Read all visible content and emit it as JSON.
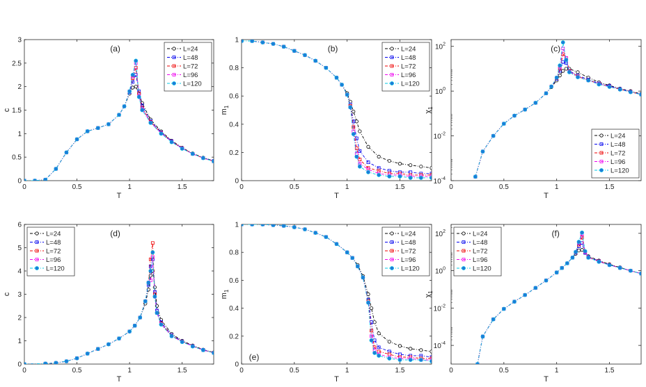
{
  "figure": {
    "series_names": [
      "L=24",
      "L=48",
      "L=72",
      "L=96",
      "L=120"
    ],
    "series_colors": [
      "#000000",
      "#0000ee",
      "#ee0000",
      "#ee00ee",
      "#00c8e6"
    ],
    "marker_fill": "#1e7bd8"
  },
  "chart_data": [
    {
      "panel_label": "(a)",
      "type": "line",
      "xlabel": "T",
      "ylabel": "c",
      "xlim": [
        0,
        1.8
      ],
      "ylim": [
        0,
        3
      ],
      "yscale": "linear",
      "xticks": [
        "0",
        "0.5",
        "1",
        "1.5"
      ],
      "yticks": [
        "0",
        "0.5",
        "1",
        "1.5",
        "2",
        "2.5",
        "3"
      ],
      "legend": "top-right",
      "x": [
        0,
        0.1,
        0.2,
        0.3,
        0.4,
        0.5,
        0.6,
        0.7,
        0.8,
        0.9,
        0.95,
        1.0,
        1.03,
        1.06,
        1.09,
        1.12,
        1.2,
        1.3,
        1.4,
        1.5,
        1.6,
        1.7,
        1.8
      ],
      "series": [
        {
          "name": "L=24",
          "values": [
            0,
            0.0,
            0.02,
            0.25,
            0.6,
            0.88,
            1.05,
            1.12,
            1.2,
            1.4,
            1.58,
            1.85,
            1.98,
            2.0,
            1.85,
            1.65,
            1.3,
            1.05,
            0.85,
            0.7,
            0.58,
            0.49,
            0.42
          ]
        },
        {
          "name": "L=48",
          "values": [
            0,
            0.0,
            0.02,
            0.25,
            0.6,
            0.88,
            1.05,
            1.12,
            1.2,
            1.4,
            1.58,
            1.88,
            2.1,
            2.25,
            1.9,
            1.6,
            1.27,
            1.03,
            0.84,
            0.69,
            0.57,
            0.48,
            0.42
          ]
        },
        {
          "name": "L=72",
          "values": [
            0,
            0.0,
            0.02,
            0.25,
            0.6,
            0.88,
            1.05,
            1.12,
            1.2,
            1.4,
            1.58,
            1.9,
            2.18,
            2.4,
            1.85,
            1.55,
            1.25,
            1.02,
            0.83,
            0.69,
            0.57,
            0.48,
            0.41
          ]
        },
        {
          "name": "L=96",
          "values": [
            0,
            0.0,
            0.02,
            0.25,
            0.6,
            0.88,
            1.05,
            1.12,
            1.2,
            1.4,
            1.58,
            1.9,
            2.22,
            2.5,
            1.8,
            1.52,
            1.24,
            1.01,
            0.83,
            0.69,
            0.57,
            0.48,
            0.41
          ]
        },
        {
          "name": "L=120",
          "values": [
            0,
            0.0,
            0.02,
            0.25,
            0.6,
            0.88,
            1.05,
            1.12,
            1.2,
            1.4,
            1.58,
            1.9,
            2.25,
            2.55,
            1.78,
            1.5,
            1.23,
            1.0,
            0.82,
            0.68,
            0.57,
            0.48,
            0.41
          ]
        }
      ]
    },
    {
      "panel_label": "(b)",
      "type": "line",
      "xlabel": "T",
      "ylabel": "m1",
      "xlim": [
        0,
        1.8
      ],
      "ylim": [
        0,
        1
      ],
      "yscale": "linear",
      "xticks": [
        "0",
        "0.5",
        "1",
        "1.5"
      ],
      "yticks": [
        "0",
        "0.2",
        "0.4",
        "0.6",
        "0.8",
        "1"
      ],
      "legend": "top-right",
      "x": [
        0,
        0.1,
        0.2,
        0.3,
        0.4,
        0.5,
        0.6,
        0.7,
        0.8,
        0.9,
        0.95,
        1.0,
        1.03,
        1.06,
        1.09,
        1.12,
        1.2,
        1.3,
        1.4,
        1.5,
        1.6,
        1.7,
        1.8
      ],
      "series": [
        {
          "name": "L=24",
          "values": [
            0.99,
            0.99,
            0.98,
            0.97,
            0.95,
            0.92,
            0.89,
            0.85,
            0.8,
            0.73,
            0.68,
            0.62,
            0.56,
            0.49,
            0.42,
            0.35,
            0.24,
            0.17,
            0.14,
            0.12,
            0.11,
            0.1,
            0.09
          ]
        },
        {
          "name": "L=48",
          "values": [
            0.99,
            0.99,
            0.98,
            0.97,
            0.95,
            0.92,
            0.89,
            0.85,
            0.8,
            0.73,
            0.68,
            0.61,
            0.54,
            0.42,
            0.3,
            0.21,
            0.13,
            0.09,
            0.07,
            0.06,
            0.06,
            0.05,
            0.05
          ]
        },
        {
          "name": "L=72",
          "values": [
            0.99,
            0.99,
            0.98,
            0.97,
            0.95,
            0.92,
            0.89,
            0.85,
            0.8,
            0.73,
            0.68,
            0.61,
            0.53,
            0.38,
            0.23,
            0.15,
            0.09,
            0.07,
            0.05,
            0.05,
            0.04,
            0.04,
            0.04
          ]
        },
        {
          "name": "L=96",
          "values": [
            0.99,
            0.99,
            0.98,
            0.97,
            0.95,
            0.92,
            0.89,
            0.85,
            0.8,
            0.73,
            0.68,
            0.61,
            0.52,
            0.35,
            0.19,
            0.12,
            0.08,
            0.05,
            0.04,
            0.04,
            0.03,
            0.03,
            0.03
          ]
        },
        {
          "name": "L=120",
          "values": [
            0.99,
            0.99,
            0.98,
            0.97,
            0.95,
            0.92,
            0.89,
            0.85,
            0.8,
            0.73,
            0.68,
            0.61,
            0.52,
            0.33,
            0.17,
            0.1,
            0.06,
            0.04,
            0.03,
            0.03,
            0.02,
            0.02,
            0.02
          ]
        }
      ]
    },
    {
      "panel_label": "(c)",
      "type": "line",
      "xlabel": "T",
      "ylabel": "χ1",
      "xlim": [
        0,
        1.8
      ],
      "ylim": [
        0.0001,
        200
      ],
      "yscale": "log",
      "xticks": [
        "0",
        "0.5",
        "1",
        "1.5"
      ],
      "yticks_values": [
        0.0001,
        0.01,
        1,
        100
      ],
      "yticks_exp": [
        "-4",
        "-2",
        "0",
        "2"
      ],
      "legend": "bottom-right",
      "x": [
        0.23,
        0.3,
        0.4,
        0.5,
        0.6,
        0.7,
        0.8,
        0.9,
        0.95,
        1.0,
        1.03,
        1.06,
        1.09,
        1.12,
        1.2,
        1.3,
        1.4,
        1.5,
        1.6,
        1.7,
        1.8
      ],
      "series": [
        {
          "name": "L=24",
          "values": [
            0.00015,
            0.002,
            0.01,
            0.035,
            0.08,
            0.15,
            0.3,
            0.8,
            1.5,
            3,
            5,
            8,
            10,
            10,
            7,
            4,
            2.5,
            1.8,
            1.3,
            1.0,
            0.75
          ]
        },
        {
          "name": "L=48",
          "values": [
            0.00015,
            0.002,
            0.01,
            0.035,
            0.08,
            0.15,
            0.3,
            0.8,
            1.6,
            3.5,
            8,
            20,
            18,
            8,
            5,
            3.3,
            2.2,
            1.7,
            1.25,
            0.95,
            0.72
          ]
        },
        {
          "name": "L=72",
          "values": [
            0.00015,
            0.002,
            0.01,
            0.035,
            0.08,
            0.15,
            0.3,
            0.8,
            1.6,
            3.8,
            10,
            45,
            30,
            8,
            4.5,
            3.1,
            2.1,
            1.6,
            1.2,
            0.93,
            0.7
          ]
        },
        {
          "name": "L=96",
          "values": [
            0.00015,
            0.002,
            0.01,
            0.035,
            0.08,
            0.15,
            0.3,
            0.8,
            1.6,
            4,
            12,
            80,
            30,
            7.5,
            4.3,
            3.0,
            2.1,
            1.6,
            1.2,
            0.92,
            0.7
          ]
        },
        {
          "name": "L=120",
          "values": [
            0.00015,
            0.002,
            0.01,
            0.035,
            0.08,
            0.15,
            0.3,
            0.8,
            1.6,
            4,
            14,
            150,
            25,
            7,
            4.2,
            3.0,
            2.0,
            1.55,
            1.18,
            0.9,
            0.7
          ]
        }
      ]
    },
    {
      "panel_label": "(d)",
      "type": "line",
      "xlabel": "T",
      "ylabel": "c",
      "xlim": [
        0,
        1.8
      ],
      "ylim": [
        0,
        6
      ],
      "yscale": "linear",
      "xticks": [
        "0",
        "0.5",
        "1",
        "1.5"
      ],
      "yticks": [
        "0",
        "1",
        "2",
        "3",
        "4",
        "5",
        "6"
      ],
      "legend": "top-left",
      "x": [
        0,
        0.2,
        0.3,
        0.4,
        0.5,
        0.6,
        0.7,
        0.8,
        0.9,
        1.0,
        1.05,
        1.1,
        1.15,
        1.18,
        1.2,
        1.22,
        1.24,
        1.26,
        1.3,
        1.4,
        1.5,
        1.6,
        1.7,
        1.8
      ],
      "series": [
        {
          "name": "L=24",
          "values": [
            0,
            0.02,
            0.05,
            0.12,
            0.25,
            0.45,
            0.65,
            0.85,
            1.1,
            1.4,
            1.65,
            2.0,
            2.6,
            3.2,
            3.8,
            4.0,
            3.3,
            2.5,
            1.9,
            1.3,
            1.0,
            0.8,
            0.62,
            0.5
          ]
        },
        {
          "name": "L=48",
          "values": [
            0,
            0.02,
            0.05,
            0.12,
            0.25,
            0.45,
            0.65,
            0.85,
            1.1,
            1.4,
            1.65,
            2.0,
            2.7,
            3.4,
            4.2,
            4.5,
            3.1,
            2.3,
            1.8,
            1.25,
            0.98,
            0.78,
            0.61,
            0.49
          ]
        },
        {
          "name": "L=72",
          "values": [
            0,
            0.02,
            0.05,
            0.12,
            0.25,
            0.45,
            0.65,
            0.85,
            1.1,
            1.4,
            1.65,
            2.0,
            2.7,
            3.5,
            4.5,
            5.2,
            3.0,
            2.2,
            1.75,
            1.22,
            0.97,
            0.77,
            0.6,
            0.49
          ]
        },
        {
          "name": "L=96",
          "values": [
            0,
            0.02,
            0.05,
            0.12,
            0.25,
            0.45,
            0.65,
            0.85,
            1.1,
            1.4,
            1.65,
            2.0,
            2.7,
            3.5,
            3.6,
            4.6,
            2.9,
            2.2,
            1.72,
            1.2,
            0.96,
            0.77,
            0.6,
            0.48
          ]
        },
        {
          "name": "L=120",
          "values": [
            0,
            0.02,
            0.05,
            0.12,
            0.25,
            0.45,
            0.65,
            0.85,
            1.1,
            1.4,
            1.65,
            2.0,
            2.7,
            3.5,
            4.0,
            4.8,
            2.9,
            2.2,
            1.7,
            1.2,
            0.95,
            0.76,
            0.6,
            0.48
          ]
        }
      ]
    },
    {
      "panel_label": "(e)",
      "type": "line",
      "xlabel": "T",
      "ylabel": "m1",
      "xlim": [
        0,
        1.8
      ],
      "ylim": [
        0,
        1
      ],
      "yscale": "linear",
      "xticks": [
        "0",
        "0.5",
        "1",
        "1.5"
      ],
      "yticks": [
        "0",
        "0.2",
        "0.4",
        "0.6",
        "0.8",
        "1"
      ],
      "legend": "top-right",
      "x": [
        0,
        0.1,
        0.2,
        0.3,
        0.4,
        0.5,
        0.6,
        0.7,
        0.8,
        0.9,
        1.0,
        1.05,
        1.1,
        1.15,
        1.2,
        1.23,
        1.26,
        1.3,
        1.4,
        1.5,
        1.6,
        1.7,
        1.8
      ],
      "series": [
        {
          "name": "L=24",
          "values": [
            1,
            1,
            1,
            0.995,
            0.99,
            0.98,
            0.965,
            0.94,
            0.91,
            0.86,
            0.8,
            0.76,
            0.71,
            0.63,
            0.5,
            0.4,
            0.3,
            0.22,
            0.16,
            0.13,
            0.11,
            0.1,
            0.09
          ]
        },
        {
          "name": "L=48",
          "values": [
            1,
            1,
            1,
            0.995,
            0.99,
            0.98,
            0.965,
            0.94,
            0.91,
            0.86,
            0.8,
            0.76,
            0.7,
            0.62,
            0.46,
            0.3,
            0.17,
            0.12,
            0.09,
            0.07,
            0.06,
            0.06,
            0.05
          ]
        },
        {
          "name": "L=72",
          "values": [
            1,
            1,
            1,
            0.995,
            0.99,
            0.98,
            0.965,
            0.94,
            0.91,
            0.86,
            0.8,
            0.76,
            0.7,
            0.62,
            0.45,
            0.24,
            0.12,
            0.09,
            0.07,
            0.05,
            0.05,
            0.04,
            0.04
          ]
        },
        {
          "name": "L=96",
          "values": [
            1,
            1,
            1,
            0.995,
            0.99,
            0.98,
            0.965,
            0.94,
            0.91,
            0.86,
            0.8,
            0.76,
            0.7,
            0.62,
            0.44,
            0.2,
            0.1,
            0.07,
            0.05,
            0.04,
            0.04,
            0.03,
            0.03
          ]
        },
        {
          "name": "L=120",
          "values": [
            1,
            1,
            1,
            0.995,
            0.99,
            0.98,
            0.965,
            0.94,
            0.91,
            0.86,
            0.8,
            0.76,
            0.7,
            0.62,
            0.44,
            0.17,
            0.08,
            0.06,
            0.04,
            0.03,
            0.03,
            0.03,
            0.02
          ]
        }
      ]
    },
    {
      "panel_label": "(f)",
      "type": "line",
      "xlabel": "T",
      "ylabel": "χ1",
      "xlim": [
        0,
        1.8
      ],
      "ylim": [
        1e-05,
        300
      ],
      "yscale": "log",
      "xticks": [
        "0",
        "0.5",
        "1",
        "1.5"
      ],
      "yticks_values": [
        0.0001,
        0.01,
        1,
        100
      ],
      "yticks_exp": [
        "-4",
        "-2",
        "0",
        "2"
      ],
      "legend": "top-left",
      "x": [
        0.25,
        0.3,
        0.4,
        0.5,
        0.6,
        0.7,
        0.8,
        0.9,
        1.0,
        1.05,
        1.1,
        1.15,
        1.18,
        1.21,
        1.24,
        1.27,
        1.3,
        1.4,
        1.5,
        1.6,
        1.7,
        1.8
      ],
      "series": [
        {
          "name": "L=24",
          "values": [
            1e-05,
            0.0003,
            0.0025,
            0.009,
            0.022,
            0.05,
            0.12,
            0.3,
            0.8,
            1.4,
            2.5,
            5,
            8,
            12,
            13,
            9,
            6,
            3.5,
            2.2,
            1.5,
            1.0,
            0.7
          ]
        },
        {
          "name": "L=48",
          "values": [
            1e-05,
            0.0003,
            0.0025,
            0.009,
            0.022,
            0.05,
            0.12,
            0.3,
            0.8,
            1.4,
            2.5,
            5,
            9,
            20,
            30,
            9,
            5.5,
            3.3,
            2.1,
            1.45,
            1.0,
            0.7
          ]
        },
        {
          "name": "L=72",
          "values": [
            1e-05,
            0.0003,
            0.0025,
            0.009,
            0.022,
            0.05,
            0.12,
            0.3,
            0.8,
            1.4,
            2.5,
            5,
            9.5,
            25,
            60,
            10,
            5.2,
            3.2,
            2.1,
            1.4,
            1.0,
            0.7
          ]
        },
        {
          "name": "L=96",
          "values": [
            1e-05,
            0.0003,
            0.0025,
            0.009,
            0.022,
            0.05,
            0.12,
            0.3,
            0.8,
            1.4,
            2.5,
            5,
            10,
            30,
            90,
            10,
            5,
            3.1,
            2.0,
            1.4,
            1.0,
            0.7
          ]
        },
        {
          "name": "L=120",
          "values": [
            1e-05,
            0.0003,
            0.0025,
            0.009,
            0.022,
            0.05,
            0.12,
            0.3,
            0.8,
            1.4,
            2.5,
            5,
            10,
            35,
            110,
            11,
            5,
            3.0,
            2.0,
            1.4,
            1.0,
            0.7
          ]
        }
      ]
    }
  ]
}
